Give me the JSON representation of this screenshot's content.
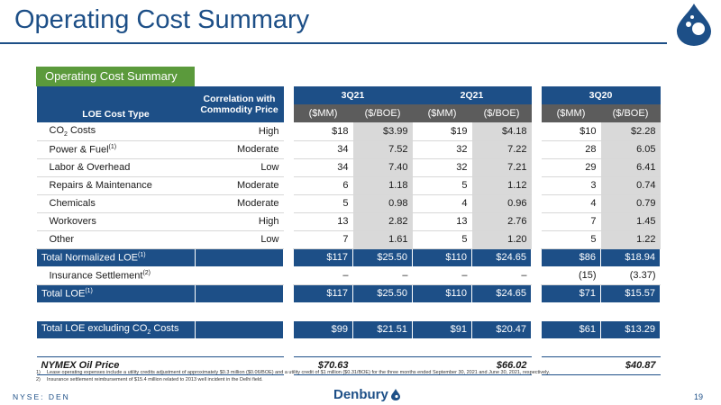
{
  "title": "Operating Cost Summary",
  "section_tab": "Operating Cost Summary",
  "colors": {
    "navy": "#1d4f87",
    "green": "#5b9a3c",
    "gray": "#5c5c5c",
    "shade": "#d9d9d9"
  },
  "table": {
    "type_header": "LOE Cost Type",
    "corr_header_line1": "Correlation with",
    "corr_header_line2": "Commodity Price",
    "periods": [
      "3Q21",
      "2Q21",
      "3Q20"
    ],
    "unit_mm": "($MM)",
    "unit_boe": "($/BOE)",
    "rows": [
      {
        "pre": "CO",
        "sub": "2",
        "post": " Costs",
        "corr": "High",
        "v": [
          "$18",
          "$3.99",
          "$19",
          "$4.18",
          "$10",
          "$2.28"
        ]
      },
      {
        "pre": "Power & Fuel",
        "sup": "(1)",
        "corr": "Moderate",
        "v": [
          "34",
          "7.52",
          "32",
          "7.22",
          "28",
          "6.05"
        ]
      },
      {
        "pre": "Labor & Overhead",
        "corr": "Low",
        "v": [
          "34",
          "7.40",
          "32",
          "7.21",
          "29",
          "6.41"
        ]
      },
      {
        "pre": "Repairs & Maintenance",
        "corr": "Moderate",
        "v": [
          "6",
          "1.18",
          "5",
          "1.12",
          "3",
          "0.74"
        ]
      },
      {
        "pre": "Chemicals",
        "corr": "Moderate",
        "v": [
          "5",
          "0.98",
          "4",
          "0.96",
          "4",
          "0.79"
        ]
      },
      {
        "pre": "Workovers",
        "corr": "High",
        "v": [
          "13",
          "2.82",
          "13",
          "2.76",
          "7",
          "1.45"
        ]
      },
      {
        "pre": "Other",
        "corr": "Low",
        "v": [
          "7",
          "1.61",
          "5",
          "1.20",
          "5",
          "1.22"
        ]
      }
    ],
    "total_normalized": {
      "label": "Total Normalized LOE",
      "sup": "(1)",
      "v": [
        "$117",
        "$25.50",
        "$110",
        "$24.65",
        "$86",
        "$18.94"
      ]
    },
    "insurance": {
      "label": "Insurance Settlement",
      "sup": "(2)",
      "v": [
        "–",
        "–",
        "–",
        "–",
        "(15)",
        "(3.37)"
      ]
    },
    "total_loe": {
      "label": "Total LOE",
      "sup": "(1)",
      "v": [
        "$117",
        "$25.50",
        "$110",
        "$24.65",
        "$71",
        "$15.57"
      ]
    },
    "total_ex_co2": {
      "pre": "Total LOE excluding CO",
      "sub": "2",
      "post": " Costs",
      "v": [
        "$99",
        "$21.51",
        "$91",
        "$20.47",
        "$61",
        "$13.29"
      ]
    },
    "nymex": {
      "label": "NYMEX Oil Price",
      "v": [
        "$70.63",
        "$66.02",
        "$40.87"
      ]
    }
  },
  "footnotes": [
    {
      "num": "1)",
      "text": "Lease operating expenses include a utility credits adjustment of approximately $0.3 million ($0.06/BOE) and a utility credit of $1 million ($0.31/BOE) for the three months ended September 30, 2021 and June 30, 2021, respectively."
    },
    {
      "num": "2)",
      "text": "Insurance settlement reimbursement of $15.4 million related to 2013 well incident in the Delhi field."
    }
  ],
  "footer": {
    "ticker": "NYSE: DEN",
    "brand": "Denbury",
    "page": "19"
  },
  "icons": {
    "logo": "drop-logo-icon",
    "brand": "drop-icon"
  }
}
